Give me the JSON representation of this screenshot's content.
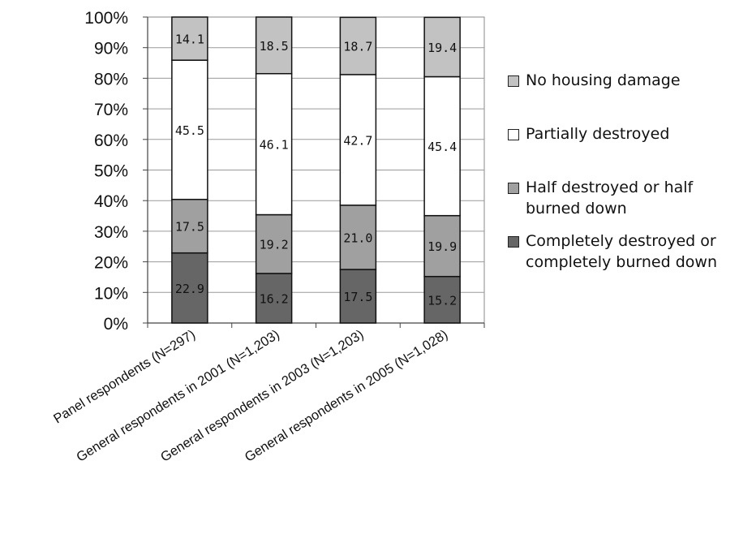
{
  "chart_data": {
    "type": "bar",
    "stacked": true,
    "percent": true,
    "categories": [
      "Panel respondents (N=297)",
      "General respondents in 2001 (N=1,203)",
      "General respondents in 2003 (N=1,203)",
      "General respondents in 2005 (N=1,028)"
    ],
    "series": [
      {
        "name": "Completely destroyed or completely burned down",
        "color": "#666666",
        "values": [
          22.9,
          16.2,
          17.5,
          15.2
        ]
      },
      {
        "name": "Half destroyed or half burned down",
        "color": "#a0a0a0",
        "values": [
          17.5,
          19.2,
          21.0,
          19.9
        ]
      },
      {
        "name": "Partially destroyed",
        "color": "#ffffff",
        "values": [
          45.5,
          46.1,
          42.7,
          45.4
        ]
      },
      {
        "name": "No housing damage",
        "color": "#c2c2c2",
        "values": [
          14.1,
          18.5,
          18.7,
          19.4
        ]
      }
    ],
    "yticks": [
      "0%",
      "10%",
      "20%",
      "30%",
      "40%",
      "50%",
      "60%",
      "70%",
      "80%",
      "90%",
      "100%"
    ],
    "ylim": [
      0,
      100
    ],
    "title": "",
    "xlabel": "",
    "ylabel": "",
    "grid": true,
    "legend": "right"
  }
}
